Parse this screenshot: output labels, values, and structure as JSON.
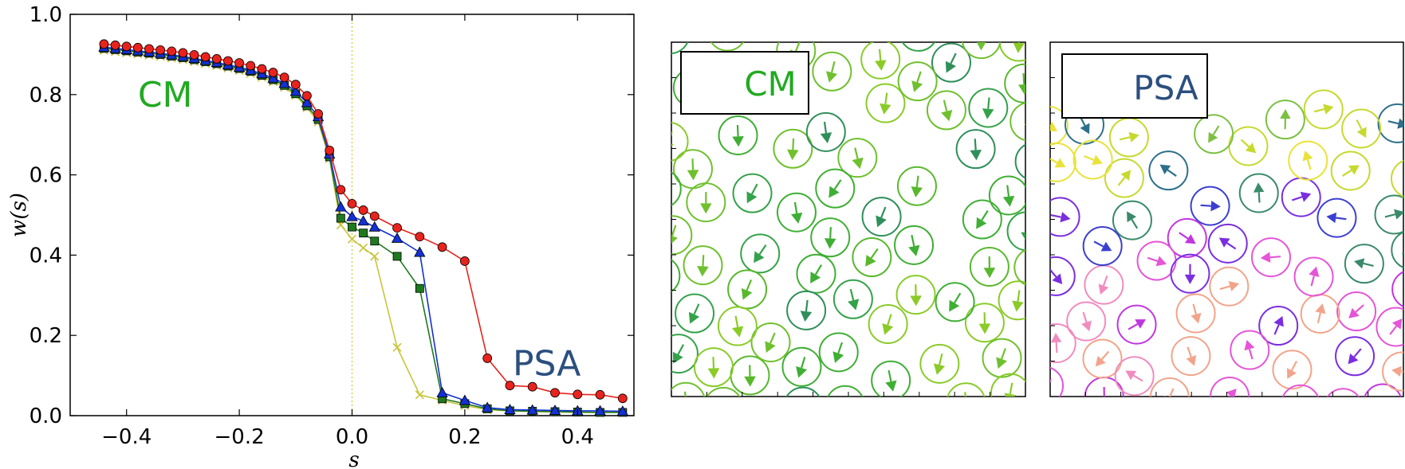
{
  "chart_data": [
    {
      "type": "line",
      "xlabel": "s",
      "ylabel": "w(s)",
      "xlim": [
        -0.5,
        0.5
      ],
      "ylim": [
        0.0,
        1.0
      ],
      "x_ticks": [
        -0.4,
        -0.2,
        0.0,
        0.2,
        0.4
      ],
      "x_tick_labels": [
        "−0.4",
        "−0.2",
        "0.0",
        "0.2",
        "0.4"
      ],
      "y_ticks": [
        0.0,
        0.2,
        0.4,
        0.6,
        0.8,
        1.0
      ],
      "y_tick_labels": [
        "0.0",
        "0.2",
        "0.4",
        "0.6",
        "0.8",
        "1.0"
      ],
      "grid": false,
      "vertical_reference_line": {
        "x": 0.0,
        "style": "dotted",
        "color": "#d4d24a"
      },
      "annotations": [
        {
          "text": "CM",
          "x": -0.38,
          "y": 0.8,
          "color": "#22aa22"
        },
        {
          "text": "PSA",
          "x": 0.285,
          "y": 0.13,
          "color": "#2b4f7f"
        }
      ],
      "series": [
        {
          "marker": "circle",
          "color": "#e8231d",
          "x": [
            -0.44,
            -0.42,
            -0.4,
            -0.38,
            -0.36,
            -0.34,
            -0.32,
            -0.3,
            -0.28,
            -0.26,
            -0.24,
            -0.22,
            -0.2,
            -0.18,
            -0.16,
            -0.14,
            -0.12,
            -0.1,
            -0.08,
            -0.06,
            -0.04,
            -0.02,
            0.0,
            0.02,
            0.04,
            0.08,
            0.12,
            0.16,
            0.2,
            0.24,
            0.28,
            0.32,
            0.36,
            0.4,
            0.44,
            0.48
          ],
          "y": [
            0.926,
            0.923,
            0.92,
            0.917,
            0.914,
            0.911,
            0.908,
            0.904,
            0.899,
            0.894,
            0.889,
            0.884,
            0.879,
            0.872,
            0.864,
            0.855,
            0.843,
            0.825,
            0.797,
            0.752,
            0.661,
            0.563,
            0.528,
            0.512,
            0.497,
            0.468,
            0.446,
            0.42,
            0.385,
            0.143,
            0.075,
            0.072,
            0.057,
            0.053,
            0.052,
            0.043
          ]
        },
        {
          "marker": "triangle",
          "color": "#1431d4",
          "x": [
            -0.44,
            -0.42,
            -0.4,
            -0.38,
            -0.36,
            -0.34,
            -0.32,
            -0.3,
            -0.28,
            -0.26,
            -0.24,
            -0.22,
            -0.2,
            -0.18,
            -0.16,
            -0.14,
            -0.12,
            -0.1,
            -0.08,
            -0.06,
            -0.04,
            -0.02,
            0.0,
            0.02,
            0.04,
            0.08,
            0.12,
            0.16,
            0.2,
            0.24,
            0.28,
            0.32,
            0.36,
            0.4,
            0.44,
            0.48
          ],
          "y": [
            0.918,
            0.915,
            0.912,
            0.909,
            0.906,
            0.903,
            0.899,
            0.895,
            0.89,
            0.885,
            0.88,
            0.874,
            0.868,
            0.861,
            0.852,
            0.841,
            0.828,
            0.808,
            0.78,
            0.745,
            0.652,
            0.52,
            0.496,
            0.485,
            0.47,
            0.442,
            0.407,
            0.057,
            0.038,
            0.02,
            0.015,
            0.014,
            0.013,
            0.012,
            0.012,
            0.011
          ]
        },
        {
          "marker": "square",
          "color": "#1f7a1f",
          "x": [
            -0.44,
            -0.42,
            -0.4,
            -0.38,
            -0.36,
            -0.34,
            -0.32,
            -0.3,
            -0.28,
            -0.26,
            -0.24,
            -0.22,
            -0.2,
            -0.18,
            -0.16,
            -0.14,
            -0.12,
            -0.1,
            -0.08,
            -0.06,
            -0.04,
            -0.02,
            0.0,
            0.02,
            0.04,
            0.08,
            0.12,
            0.16,
            0.2,
            0.24,
            0.28,
            0.32,
            0.36,
            0.4,
            0.44,
            0.48
          ],
          "y": [
            0.915,
            0.912,
            0.909,
            0.906,
            0.903,
            0.9,
            0.896,
            0.892,
            0.887,
            0.882,
            0.877,
            0.871,
            0.865,
            0.858,
            0.848,
            0.837,
            0.823,
            0.802,
            0.772,
            0.738,
            0.645,
            0.492,
            0.47,
            0.455,
            0.435,
            0.397,
            0.317,
            0.042,
            0.03,
            0.017,
            0.012,
            0.011,
            0.01,
            0.009,
            0.008,
            0.008
          ]
        },
        {
          "marker": "x",
          "color": "#c8c43a",
          "x": [
            -0.44,
            -0.42,
            -0.4,
            -0.38,
            -0.36,
            -0.34,
            -0.32,
            -0.3,
            -0.28,
            -0.26,
            -0.24,
            -0.22,
            -0.2,
            -0.18,
            -0.16,
            -0.14,
            -0.12,
            -0.1,
            -0.08,
            -0.06,
            -0.04,
            -0.02,
            0.0,
            0.02,
            0.04,
            0.08,
            0.12,
            0.16,
            0.2,
            0.24,
            0.28,
            0.32,
            0.36,
            0.4,
            0.44,
            0.48
          ],
          "y": [
            0.91,
            0.907,
            0.904,
            0.901,
            0.898,
            0.895,
            0.891,
            0.887,
            0.882,
            0.877,
            0.872,
            0.866,
            0.86,
            0.852,
            0.843,
            0.832,
            0.818,
            0.798,
            0.767,
            0.732,
            0.64,
            0.475,
            0.44,
            0.418,
            0.397,
            0.17,
            0.052,
            0.038,
            0.025,
            0.015,
            0.012,
            0.01,
            0.009,
            0.008,
            0.008,
            0.008
          ]
        }
      ]
    }
  ],
  "panels": {
    "cm": {
      "label": "CM",
      "label_color": "#22aa22",
      "palette": [
        "#6fc02e",
        "#58b82c",
        "#3fae34",
        "#8acb28",
        "#34a24a",
        "#2f8f5a"
      ]
    },
    "psa": {
      "label": "PSA",
      "label_color": "#2b4f7f",
      "palette": [
        "#7bc043",
        "#c6d92e",
        "#e9e238",
        "#3a8a6a",
        "#2d6f8a",
        "#3b3fd0",
        "#7a2ee0",
        "#c136e0",
        "#e455d8",
        "#f08cc0",
        "#f2a48a"
      ]
    }
  }
}
